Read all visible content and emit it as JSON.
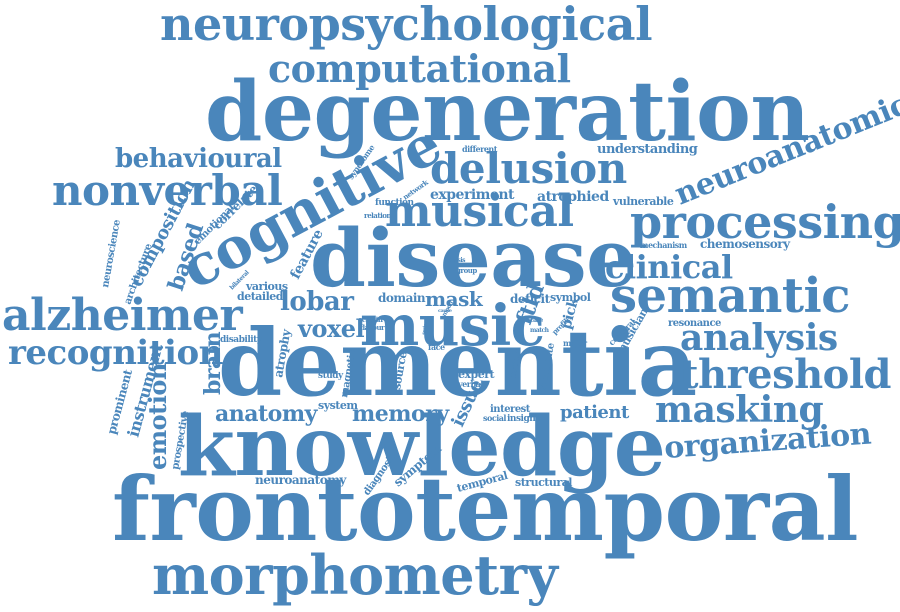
{
  "style": {
    "word_color": "#4a86bb",
    "background": "#ffffff"
  },
  "words": {
    "frontotemporal": "frontotemporal",
    "degeneration": "degeneration",
    "knowledge": "knowledge",
    "dementia": "dementia",
    "disease": "disease",
    "neuropsychological": "neuropsychological",
    "morphometry": "morphometry",
    "musical": "musical",
    "processing": "processing",
    "cognitive": "cognitive",
    "music": "music",
    "semantic": "semantic",
    "computational": "computational",
    "delusion": "delusion",
    "nonverbal": "nonverbal",
    "alzheimer": "alzheimer",
    "neuroanatomical": "neuroanatomical",
    "threshold": "threshold",
    "analysis": "analysis",
    "clinical": "clinical",
    "recognition": "recognition",
    "masking": "masking",
    "organization": "organization",
    "behavioural": "behavioural",
    "lobar": "lobar",
    "voxel": "voxel",
    "emotion": "emotion",
    "anatomy": "anatomy",
    "memory": "memory",
    "based": "based",
    "brain": "brain",
    "mask": "mask",
    "patient": "patient",
    "issue": "issue",
    "composition": "composition",
    "instrument": "instrument",
    "ftld": "ftld",
    "experiment": "experiment",
    "understanding": "understanding",
    "atrophied": "atrophied",
    "vulnerable": "vulnerable",
    "chemosensory": "chemosensory",
    "mechanism": "mechanism",
    "deficit": "deficit",
    "symbol": "symbol",
    "domain": "domain",
    "detailed": "detailed",
    "various": "various",
    "feature": "feature",
    "correlate": "correlate",
    "emotional": "emotional",
    "architecture": "architecture",
    "neuroscience": "neuroscience",
    "prominent": "prominent",
    "prospective": "prospective",
    "atrophy": "atrophy",
    "disability": "disability",
    "magnetic": "magnetic",
    "source": "source",
    "study": "study",
    "system": "system",
    "expert": "expert",
    "verbal": "verbal",
    "interest": "interest",
    "social": "social",
    "insight": "insight",
    "neuroanatomy": "neuroanatomy",
    "diagnosis": "diagnosis",
    "symptom": "symptom",
    "temporal": "temporal",
    "structural": "structural",
    "musician": "musician",
    "resonance": "resonance",
    "cerebral": "cerebral",
    "constitute": "constitute",
    "major": "major",
    "distinct": "distinct",
    "pick": "pick",
    "profile": "profile",
    "certain": "certain",
    "flavour": "flavour",
    "bilateral": "bilateral",
    "face": "face",
    "function": "function",
    "network": "network",
    "relation": "relation",
    "different": "different",
    "syndrome": "syndrome",
    "mood": "mood",
    "thesis": "thesis",
    "group": "group",
    "case": "case",
    "series": "series",
    "match": "match",
    "cause": "cause"
  }
}
